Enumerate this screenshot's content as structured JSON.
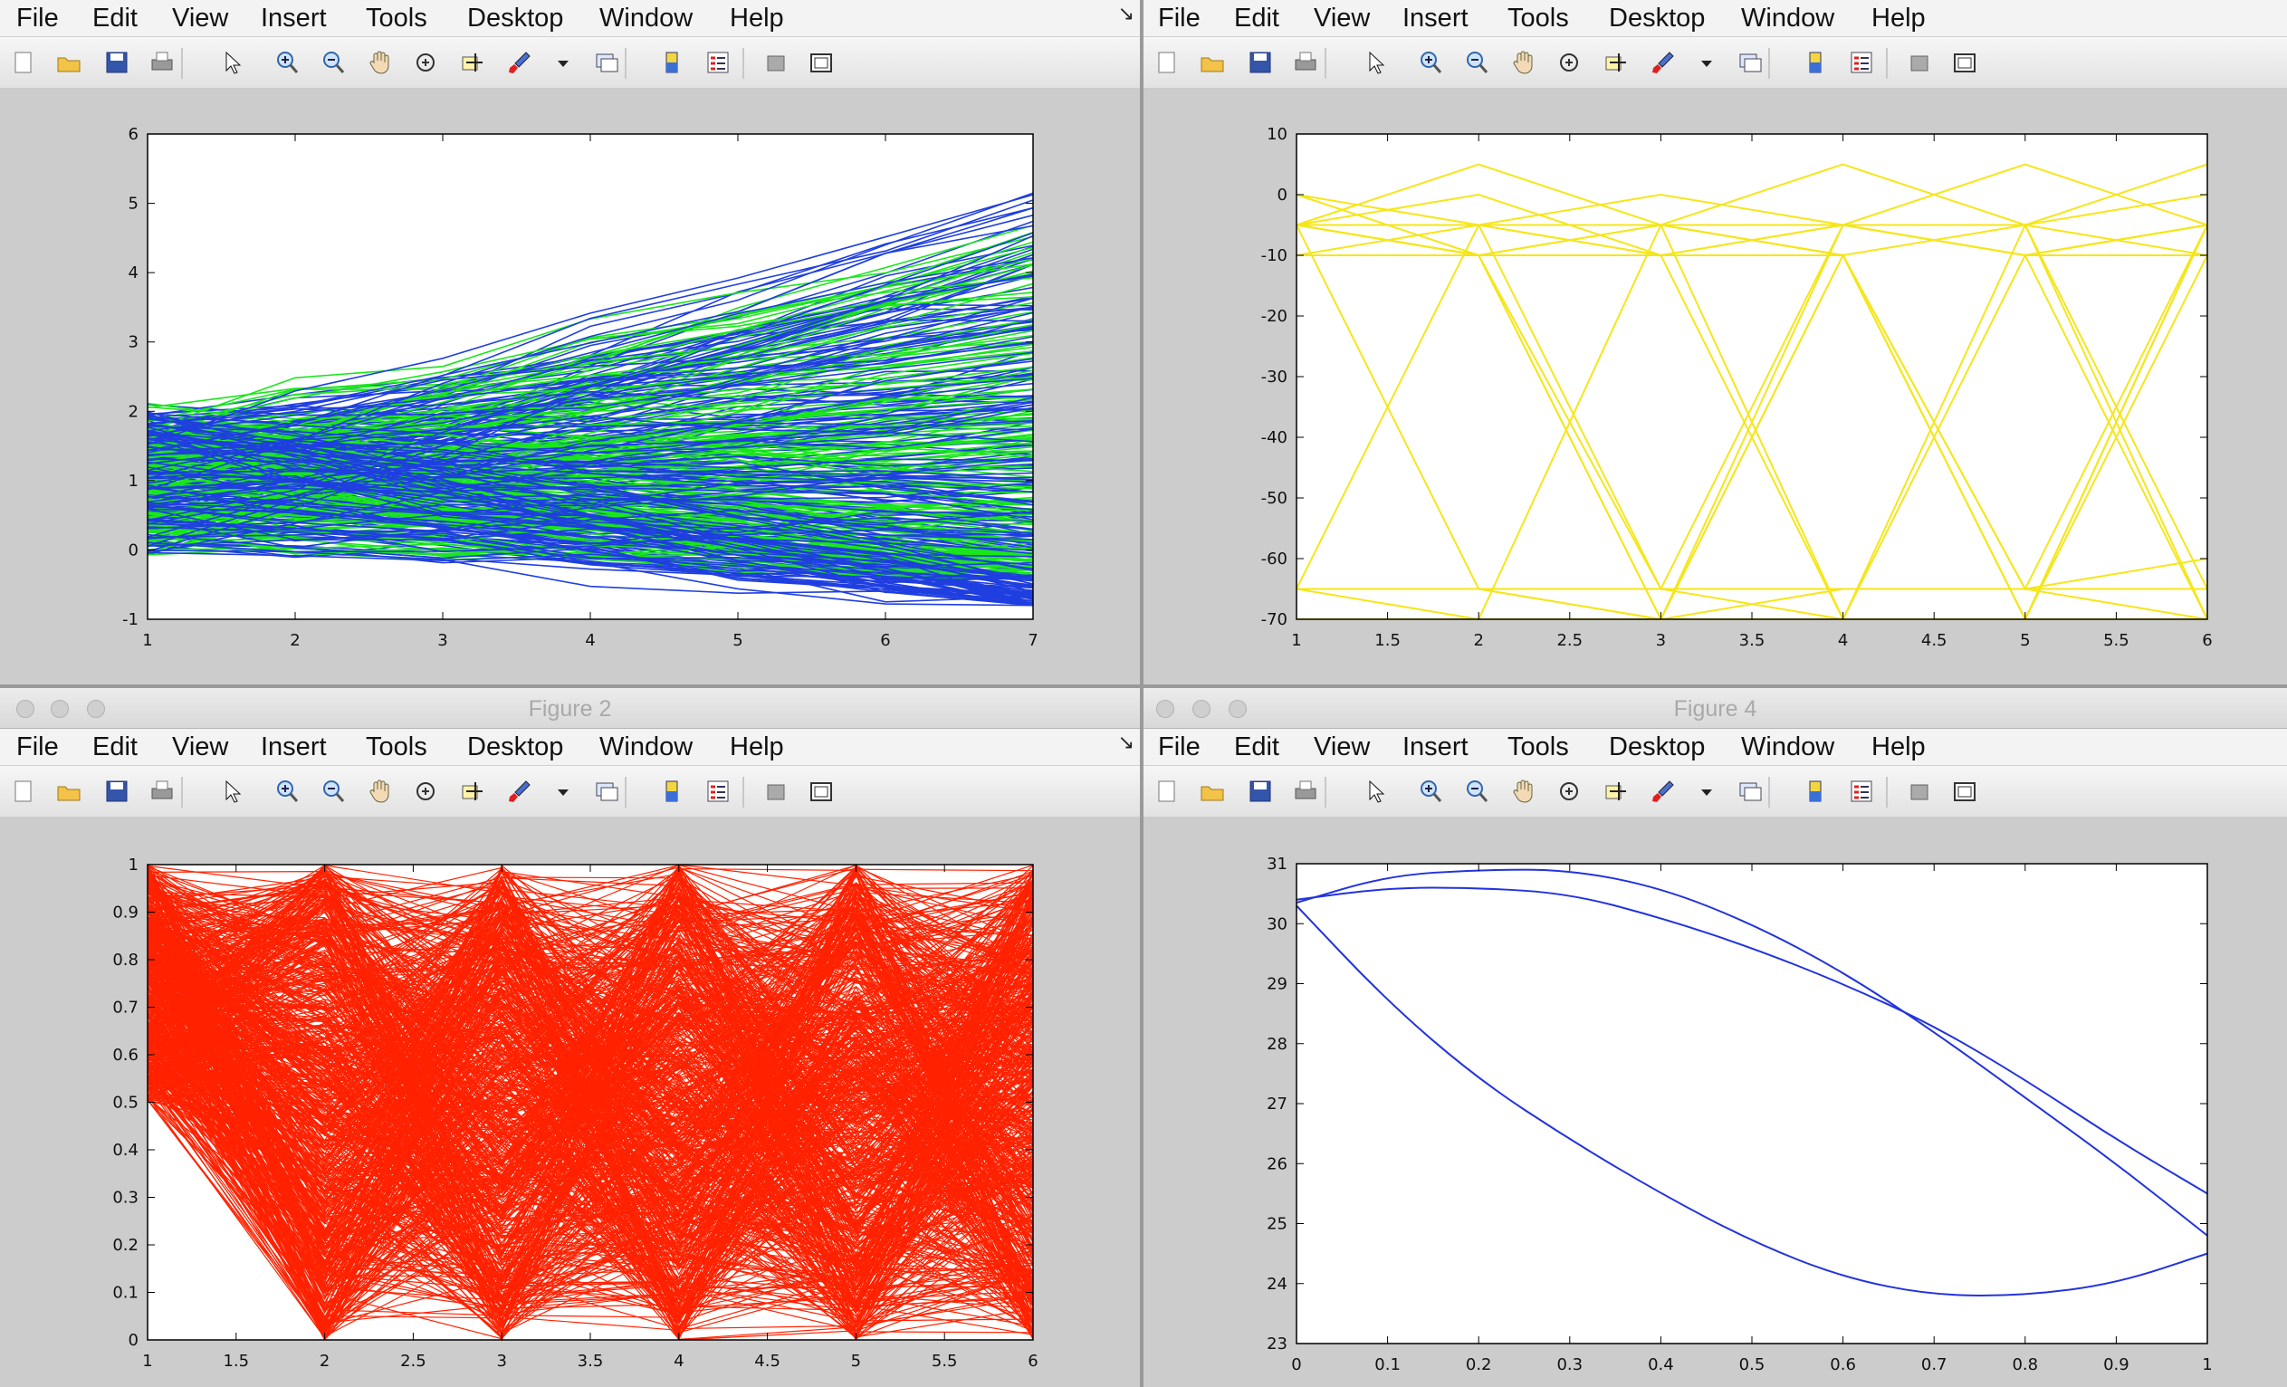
{
  "menu_items": [
    "File",
    "Edit",
    "View",
    "Insert",
    "Tools",
    "Desktop",
    "Window",
    "Help"
  ],
  "windows": [
    {
      "title": ""
    },
    {
      "title": ""
    },
    {
      "title": "Figure 2"
    },
    {
      "title": "Figure 4"
    }
  ],
  "toolbar_icons": [
    "new-figure-icon",
    "open-file-icon",
    "save-icon",
    "print-icon",
    "edit-plot-pointer-icon",
    "zoom-in-icon",
    "zoom-out-icon",
    "pan-hand-icon",
    "rotate-3d-icon",
    "data-cursor-icon",
    "brush-icon",
    "brush-dropdown-icon",
    "link-plot-icon",
    "colorbar-icon",
    "legend-icon",
    "hide-plot-tools-icon",
    "show-plot-tools-icon"
  ],
  "colors": {
    "blue": "#1f3fe0",
    "green": "#19e61c",
    "yellow": "#f5e61b",
    "red": "#ff2200",
    "curve": "#2233dd"
  },
  "chart_data": [
    {
      "type": "line",
      "xlim": [
        1,
        7
      ],
      "ylim": [
        -1,
        6
      ],
      "xticks": [
        "1",
        "2",
        "3",
        "4",
        "5",
        "6",
        "7"
      ],
      "yticks": [
        "-1",
        "0",
        "1",
        "2",
        "3",
        "4",
        "5",
        "6"
      ],
      "series": [
        {
          "color": "blue",
          "x": [
            1,
            7
          ],
          "y_band_start": [
            0,
            2
          ],
          "y_band_end": [
            -0.8,
            5.2
          ]
        },
        {
          "color": "green",
          "x": [
            1,
            7
          ],
          "y_band_start": [
            0,
            2
          ],
          "y_band_end": [
            -0.4,
            4.9
          ]
        }
      ]
    },
    {
      "type": "line",
      "xlim": [
        1,
        6
      ],
      "ylim": [
        -70,
        10
      ],
      "xticks": [
        "1",
        "1.5",
        "2",
        "2.5",
        "3",
        "3.5",
        "4",
        "4.5",
        "5",
        "5.5",
        "6"
      ],
      "yticks": [
        "10",
        "0",
        "-10",
        "-20",
        "-30",
        "-40",
        "-50",
        "-60",
        "-70"
      ],
      "levels": [
        5,
        0,
        -5,
        -10,
        -65,
        -70
      ],
      "series": [
        {
          "color": "yellow"
        }
      ]
    },
    {
      "type": "line",
      "xlim": [
        1,
        6
      ],
      "ylim": [
        0,
        1
      ],
      "xticks": [
        "1",
        "1.5",
        "2",
        "2.5",
        "3",
        "3.5",
        "4",
        "4.5",
        "5",
        "5.5",
        "6"
      ],
      "yticks": [
        "1",
        "0.9",
        "0.8",
        "0.7",
        "0.6",
        "0.5",
        "0.4",
        "0.3",
        "0.2",
        "0.1",
        "0"
      ],
      "series": [
        {
          "color": "red",
          "x": [
            1,
            2,
            3,
            4,
            5,
            6
          ],
          "y_start_range": [
            0.5,
            1
          ],
          "y_other_range": [
            0,
            1
          ]
        }
      ]
    },
    {
      "type": "line",
      "xlim": [
        0,
        1
      ],
      "ylim": [
        23,
        31
      ],
      "xticks": [
        "0",
        "0.1",
        "0.2",
        "0.3",
        "0.4",
        "0.5",
        "0.6",
        "0.7",
        "0.8",
        "0.9",
        "1"
      ],
      "yticks": [
        "31",
        "30",
        "29",
        "28",
        "27",
        "26",
        "25",
        "24",
        "23"
      ],
      "series": [
        {
          "color": "curve",
          "x": [
            0,
            0.1,
            0.2,
            0.3,
            0.4,
            0.5,
            0.6,
            0.7,
            0.8,
            0.9,
            1
          ],
          "y": [
            30.3,
            28.7,
            27.4,
            26.4,
            25.5,
            24.7,
            24.1,
            23.8,
            23.8,
            24.0,
            24.5
          ]
        },
        {
          "color": "curve",
          "x": [
            0,
            0.1,
            0.2,
            0.3,
            0.4,
            0.5,
            0.6,
            0.7,
            0.8,
            0.9,
            1
          ],
          "y": [
            30.4,
            30.6,
            30.6,
            30.5,
            30.1,
            29.6,
            29.0,
            28.3,
            27.4,
            26.4,
            25.5
          ]
        },
        {
          "color": "curve",
          "x": [
            0,
            0.1,
            0.2,
            0.3,
            0.4,
            0.5,
            0.6,
            0.7,
            0.8,
            0.9,
            1
          ],
          "y": [
            30.35,
            30.8,
            30.9,
            30.9,
            30.6,
            30.0,
            29.2,
            28.2,
            27.1,
            26.0,
            24.8
          ]
        }
      ]
    }
  ]
}
